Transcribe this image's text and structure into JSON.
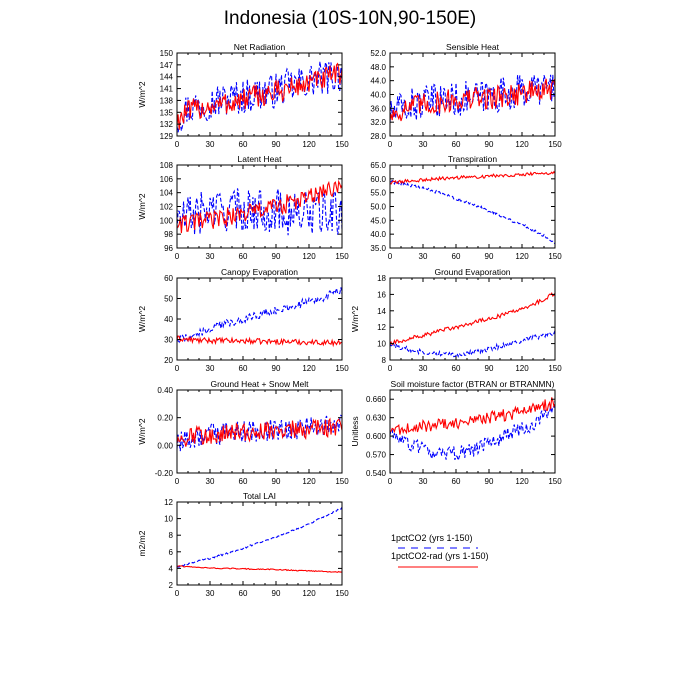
{
  "title": "Indonesia (10S-10N,90-150E)",
  "colors": {
    "series_a": "#0000ff",
    "series_b": "#ff0000"
  },
  "legend": {
    "items": [
      {
        "label": "1pctCO2 (yrs 1-150)",
        "color": "#0000ff",
        "style": "dashed"
      },
      {
        "label": "1pctCO2-rad (yrs 1-150)",
        "color": "#ff0000",
        "style": "solid"
      }
    ]
  },
  "chart_data": [
    {
      "type": "line",
      "title": "Net Radiation",
      "xlabel": "",
      "ylabel": "W/m^2",
      "xlim": [
        0,
        150
      ],
      "ylim": [
        129,
        150
      ],
      "xticks": [
        "0",
        "30",
        "60",
        "90",
        "120",
        "150"
      ],
      "yticks": [
        "129",
        "132",
        "135",
        "138",
        "141",
        "144",
        "147",
        "150"
      ],
      "series": [
        {
          "key": "1pctCO2",
          "style": "dashed",
          "color": "#0000ff",
          "x": [
            0,
            10,
            20,
            30,
            40,
            50,
            60,
            70,
            80,
            90,
            100,
            110,
            120,
            130,
            140,
            150
          ],
          "y": [
            133.5,
            136,
            137,
            137.5,
            138,
            138.5,
            139,
            139.5,
            140,
            140.5,
            141.5,
            142,
            143,
            143.5,
            144,
            144.5
          ],
          "amp": 4.5
        },
        {
          "key": "1pctCO2-rad",
          "style": "solid",
          "color": "#ff0000",
          "x": [
            0,
            10,
            20,
            30,
            40,
            50,
            60,
            70,
            80,
            90,
            100,
            110,
            120,
            130,
            140,
            150
          ],
          "y": [
            133,
            135,
            136,
            136.5,
            137,
            137.5,
            138,
            139,
            139.5,
            140,
            141,
            141.5,
            142.5,
            143,
            144,
            145
          ],
          "amp": 3.0
        }
      ]
    },
    {
      "type": "line",
      "title": "Sensible Heat",
      "xlabel": "",
      "ylabel": "",
      "xlim": [
        0,
        150
      ],
      "ylim": [
        28,
        52
      ],
      "xticks": [
        "0",
        "30",
        "60",
        "90",
        "120",
        "150"
      ],
      "yticks": [
        "28.0",
        "32.0",
        "36.0",
        "40.0",
        "44.0",
        "48.0",
        "52.0"
      ],
      "series": [
        {
          "key": "1pctCO2",
          "style": "dashed",
          "color": "#0000ff",
          "x": [
            0,
            10,
            20,
            30,
            40,
            50,
            60,
            70,
            80,
            90,
            100,
            110,
            120,
            130,
            140,
            150
          ],
          "y": [
            34,
            36,
            37,
            37.5,
            38,
            38.5,
            38.5,
            39,
            39,
            39.5,
            40,
            40.5,
            41,
            41.5,
            42,
            42
          ],
          "amp": 5.0
        },
        {
          "key": "1pctCO2-rad",
          "style": "solid",
          "color": "#ff0000",
          "x": [
            0,
            10,
            20,
            30,
            40,
            50,
            60,
            70,
            80,
            90,
            100,
            110,
            120,
            130,
            140,
            150
          ],
          "y": [
            34,
            35.5,
            36.5,
            37,
            37.5,
            38,
            38.5,
            38.5,
            39,
            39,
            39.5,
            40,
            40.5,
            41,
            41,
            41.5
          ],
          "amp": 3.5
        }
      ]
    },
    {
      "type": "line",
      "title": "Latent Heat",
      "xlabel": "",
      "ylabel": "W/m^2",
      "xlim": [
        0,
        150
      ],
      "ylim": [
        96,
        108
      ],
      "xticks": [
        "0",
        "30",
        "60",
        "90",
        "120",
        "150"
      ],
      "yticks": [
        "96",
        "98",
        "100",
        "102",
        "104",
        "106",
        "108"
      ],
      "series": [
        {
          "key": "1pctCO2",
          "style": "dashed",
          "color": "#0000ff",
          "x": [
            0,
            10,
            20,
            30,
            40,
            50,
            60,
            70,
            80,
            90,
            100,
            110,
            120,
            130,
            140,
            150
          ],
          "y": [
            100,
            100.5,
            101,
            101.5,
            101.5,
            101.5,
            101.5,
            101.5,
            101.5,
            101.5,
            101,
            101,
            101,
            101,
            101,
            101
          ],
          "amp": 3.2
        },
        {
          "key": "1pctCO2-rad",
          "style": "solid",
          "color": "#ff0000",
          "x": [
            0,
            10,
            20,
            30,
            40,
            50,
            60,
            70,
            80,
            90,
            100,
            110,
            120,
            130,
            140,
            150
          ],
          "y": [
            99.5,
            99.5,
            99.8,
            100,
            100.3,
            100.6,
            101,
            101.3,
            101.6,
            102,
            102.4,
            102.8,
            103.3,
            103.8,
            104.3,
            105
          ],
          "amp": 1.4
        }
      ]
    },
    {
      "type": "line",
      "title": "Transpiration",
      "xlabel": "",
      "ylabel": "",
      "xlim": [
        0,
        150
      ],
      "ylim": [
        35,
        65
      ],
      "xticks": [
        "0",
        "30",
        "60",
        "90",
        "120",
        "150"
      ],
      "yticks": [
        "35.0",
        "40.0",
        "45.0",
        "50.0",
        "55.0",
        "60.0",
        "65.0"
      ],
      "series": [
        {
          "key": "1pctCO2",
          "style": "dashed",
          "color": "#0000ff",
          "x": [
            0,
            10,
            20,
            30,
            40,
            50,
            60,
            70,
            80,
            90,
            100,
            110,
            120,
            130,
            140,
            150
          ],
          "y": [
            59,
            58.5,
            57.5,
            56.5,
            55.5,
            54,
            53,
            51.5,
            50,
            48.5,
            47,
            45,
            43.5,
            41.5,
            39.5,
            37
          ],
          "amp": 0.6
        },
        {
          "key": "1pctCO2-rad",
          "style": "solid",
          "color": "#ff0000",
          "x": [
            0,
            10,
            20,
            30,
            40,
            50,
            60,
            70,
            80,
            90,
            100,
            110,
            120,
            130,
            140,
            150
          ],
          "y": [
            58.5,
            59,
            59.3,
            59.6,
            59.9,
            60.2,
            60.4,
            60.6,
            60.8,
            61,
            61.2,
            61.4,
            61.6,
            61.8,
            62,
            62
          ],
          "amp": 0.6
        }
      ]
    },
    {
      "type": "line",
      "title": "Canopy Evaporation",
      "xlabel": "",
      "ylabel": "W/m^2",
      "xlim": [
        0,
        150
      ],
      "ylim": [
        20,
        60
      ],
      "xticks": [
        "0",
        "30",
        "60",
        "90",
        "120",
        "150"
      ],
      "yticks": [
        "20",
        "30",
        "40",
        "50",
        "60"
      ],
      "series": [
        {
          "key": "1pctCO2",
          "style": "dashed",
          "color": "#0000ff",
          "x": [
            0,
            10,
            20,
            30,
            40,
            50,
            60,
            70,
            80,
            90,
            100,
            110,
            120,
            130,
            140,
            150
          ],
          "y": [
            30,
            31,
            33,
            35,
            37,
            38.5,
            40,
            41.5,
            43,
            44,
            45.5,
            47,
            48.5,
            50,
            52,
            54
          ],
          "amp": 2.0
        },
        {
          "key": "1pctCO2-rad",
          "style": "solid",
          "color": "#ff0000",
          "x": [
            0,
            10,
            20,
            30,
            40,
            50,
            60,
            70,
            80,
            90,
            100,
            110,
            120,
            130,
            140,
            150
          ],
          "y": [
            30.5,
            30,
            29.5,
            29.5,
            29.5,
            29.3,
            29.3,
            29.2,
            29,
            29,
            29,
            28.8,
            28.7,
            28.6,
            28.5,
            28.5
          ],
          "amp": 1.3
        }
      ]
    },
    {
      "type": "line",
      "title": "Ground Evaporation",
      "xlabel": "",
      "ylabel": "W/m^2",
      "xlim": [
        0,
        150
      ],
      "ylim": [
        8,
        18
      ],
      "xticks": [
        "0",
        "30",
        "60",
        "90",
        "120",
        "150"
      ],
      "yticks": [
        "8",
        "10",
        "12",
        "14",
        "16",
        "18"
      ],
      "series": [
        {
          "key": "1pctCO2",
          "style": "dashed",
          "color": "#0000ff",
          "x": [
            0,
            10,
            20,
            30,
            40,
            50,
            60,
            70,
            80,
            90,
            100,
            110,
            120,
            130,
            140,
            150
          ],
          "y": [
            10,
            9.5,
            9.2,
            9,
            8.8,
            8.7,
            8.7,
            8.8,
            9,
            9.3,
            9.7,
            10,
            10.3,
            10.7,
            11,
            11.3
          ],
          "amp": 0.3
        },
        {
          "key": "1pctCO2-rad",
          "style": "solid",
          "color": "#ff0000",
          "x": [
            0,
            10,
            20,
            30,
            40,
            50,
            60,
            70,
            80,
            90,
            100,
            110,
            120,
            130,
            140,
            150
          ],
          "y": [
            10,
            10.3,
            10.7,
            11,
            11.3,
            11.7,
            12,
            12.3,
            12.7,
            13,
            13.4,
            13.8,
            14.2,
            14.8,
            15.4,
            16.2
          ],
          "amp": 0.25
        }
      ]
    },
    {
      "type": "line",
      "title": "Ground Heat + Snow Melt",
      "xlabel": "",
      "ylabel": "W/m^2",
      "xlim": [
        0,
        150
      ],
      "ylim": [
        -0.2,
        0.4
      ],
      "xticks": [
        "0",
        "30",
        "60",
        "90",
        "120",
        "150"
      ],
      "yticks": [
        "-0.20",
        "0.00",
        "0.20",
        "0.40"
      ],
      "series": [
        {
          "key": "1pctCO2",
          "style": "dashed",
          "color": "#0000ff",
          "x": [
            0,
            10,
            20,
            30,
            40,
            50,
            60,
            70,
            80,
            90,
            100,
            110,
            120,
            130,
            140,
            150
          ],
          "y": [
            0.0,
            0.05,
            0.06,
            0.08,
            0.08,
            0.09,
            0.1,
            0.1,
            0.11,
            0.11,
            0.12,
            0.12,
            0.13,
            0.13,
            0.14,
            0.14
          ],
          "amp": 0.08
        },
        {
          "key": "1pctCO2-rad",
          "style": "solid",
          "color": "#ff0000",
          "x": [
            0,
            10,
            20,
            30,
            40,
            50,
            60,
            70,
            80,
            90,
            100,
            110,
            120,
            130,
            140,
            150
          ],
          "y": [
            0.04,
            0.06,
            0.07,
            0.08,
            0.09,
            0.09,
            0.1,
            0.1,
            0.11,
            0.11,
            0.11,
            0.12,
            0.12,
            0.13,
            0.13,
            0.13
          ],
          "amp": 0.07
        }
      ]
    },
    {
      "type": "line",
      "title": "Soil moisture factor (BTRAN or BTRANMN)",
      "xlabel": "",
      "ylabel": "Unitless",
      "xlim": [
        0,
        150
      ],
      "ylim": [
        0.54,
        0.675
      ],
      "xticks": [
        "0",
        "30",
        "60",
        "90",
        "120",
        "150"
      ],
      "yticks": [
        "0.540",
        "0.570",
        "0.600",
        "0.630",
        "0.660"
      ],
      "series": [
        {
          "key": "1pctCO2",
          "style": "dashed",
          "color": "#0000ff",
          "x": [
            0,
            10,
            20,
            30,
            40,
            50,
            60,
            70,
            80,
            90,
            100,
            110,
            120,
            130,
            140,
            150
          ],
          "y": [
            0.605,
            0.595,
            0.585,
            0.578,
            0.572,
            0.57,
            0.572,
            0.575,
            0.58,
            0.588,
            0.597,
            0.605,
            0.612,
            0.62,
            0.632,
            0.648
          ],
          "amp": 0.012
        },
        {
          "key": "1pctCO2-rad",
          "style": "solid",
          "color": "#ff0000",
          "x": [
            0,
            10,
            20,
            30,
            40,
            50,
            60,
            70,
            80,
            90,
            100,
            110,
            120,
            130,
            140,
            150
          ],
          "y": [
            0.61,
            0.612,
            0.614,
            0.616,
            0.618,
            0.62,
            0.622,
            0.624,
            0.627,
            0.63,
            0.633,
            0.636,
            0.64,
            0.645,
            0.65,
            0.656
          ],
          "amp": 0.01
        }
      ]
    },
    {
      "type": "line",
      "title": "Total LAI",
      "xlabel": "",
      "ylabel": "m2/m2",
      "xlim": [
        0,
        150
      ],
      "ylim": [
        2,
        12
      ],
      "xticks": [
        "0",
        "30",
        "60",
        "90",
        "120",
        "150"
      ],
      "yticks": [
        "2",
        "4",
        "6",
        "8",
        "10",
        "12"
      ],
      "series": [
        {
          "key": "1pctCO2",
          "style": "dashed",
          "color": "#0000ff",
          "x": [
            0,
            10,
            20,
            30,
            40,
            50,
            60,
            70,
            80,
            90,
            100,
            110,
            120,
            130,
            140,
            150
          ],
          "y": [
            4.2,
            4.5,
            4.9,
            5.2,
            5.6,
            6,
            6.4,
            6.9,
            7.3,
            7.8,
            8.3,
            8.8,
            9.4,
            10,
            10.6,
            11.3
          ],
          "amp": 0.1
        },
        {
          "key": "1pctCO2-rad",
          "style": "solid",
          "color": "#ff0000",
          "x": [
            0,
            10,
            20,
            30,
            40,
            50,
            60,
            70,
            80,
            90,
            100,
            110,
            120,
            130,
            140,
            150
          ],
          "y": [
            4.3,
            4.2,
            4.1,
            4.05,
            4,
            4,
            3.95,
            3.9,
            3.9,
            3.85,
            3.8,
            3.75,
            3.7,
            3.65,
            3.6,
            3.55
          ],
          "amp": 0.06
        }
      ]
    }
  ]
}
